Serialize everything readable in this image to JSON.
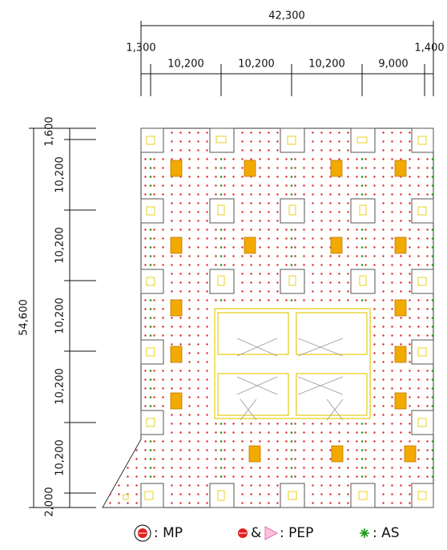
{
  "dimensions": {
    "top": {
      "total": "42,300",
      "segments": [
        "1,300",
        "10,200",
        "10,200",
        "10,200",
        "9,000",
        "1,400"
      ]
    },
    "left": {
      "total": "54,600",
      "segments": [
        "1,600",
        "10,200",
        "10,200",
        "10,200",
        "10,200",
        "10,200",
        "2,000"
      ]
    }
  },
  "legend": {
    "mp": ": MP",
    "amp": "&",
    "pep": ": PEP",
    "as": ": AS"
  }
}
